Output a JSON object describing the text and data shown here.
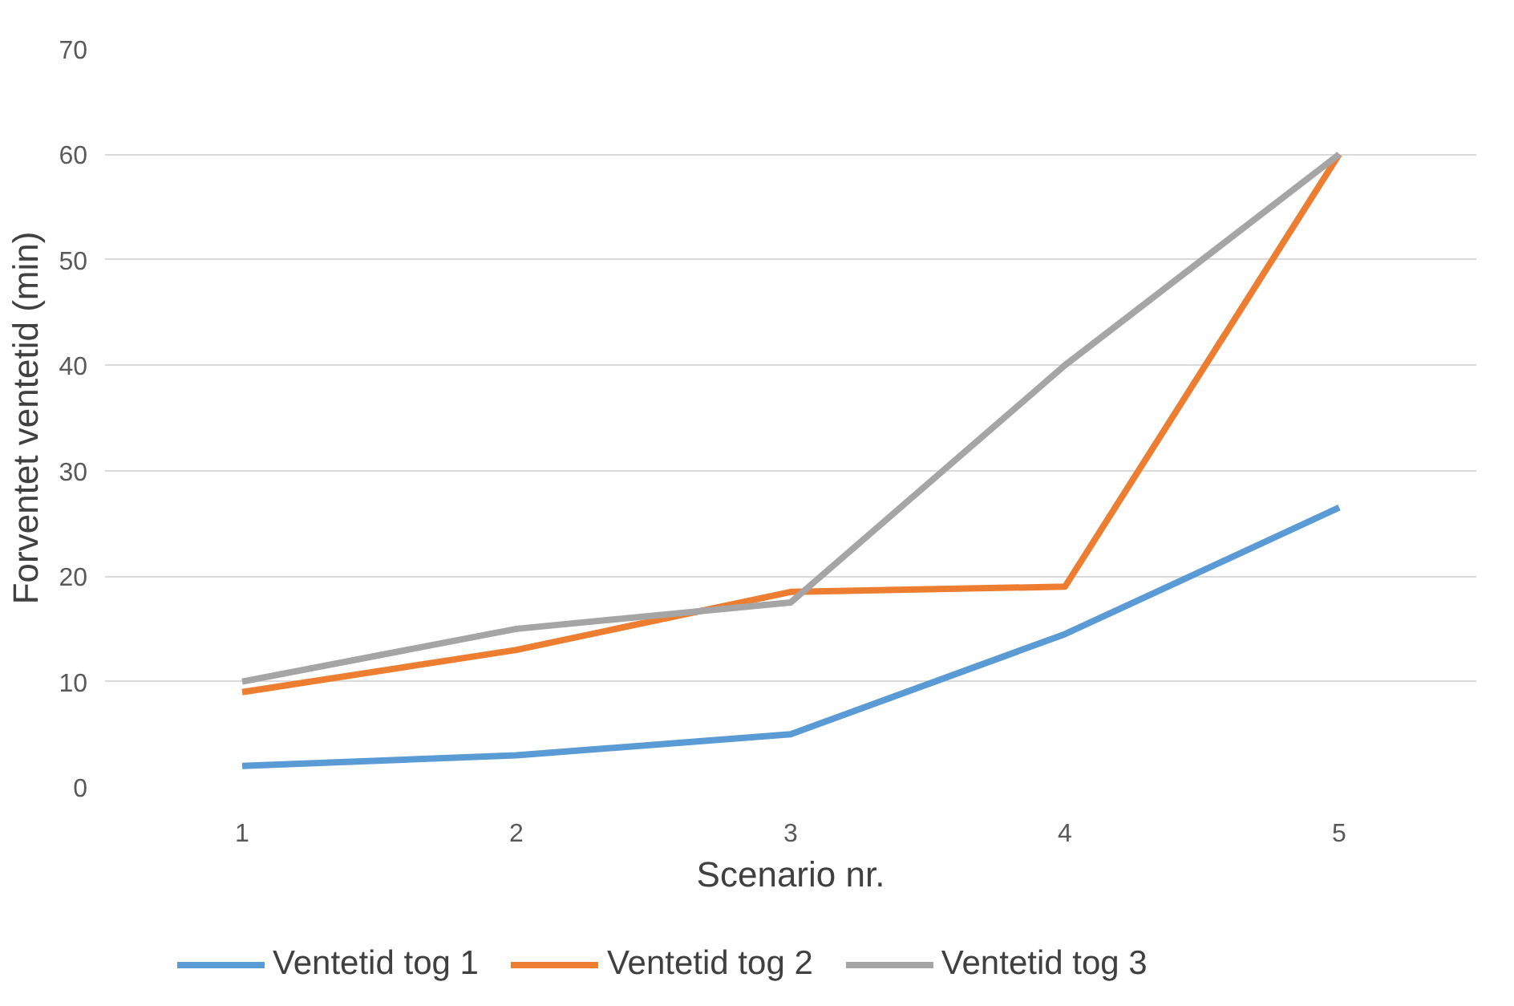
{
  "chart_data": {
    "type": "line",
    "xlabel": "Scenario nr.",
    "ylabel": "Forventet ventetid (min)",
    "categories": [
      "1",
      "2",
      "3",
      "4",
      "5"
    ],
    "series": [
      {
        "name": "Ventetid tog 1",
        "color": "#5b9bd5",
        "values": [
          2,
          3,
          5,
          14.5,
          26.5
        ]
      },
      {
        "name": "Ventetid tog 2",
        "color": "#ed7d31",
        "values": [
          9,
          13,
          18.5,
          19,
          60
        ]
      },
      {
        "name": "Ventetid tog 3",
        "color": "#a5a5a5",
        "values": [
          10,
          15,
          17.5,
          40,
          60
        ]
      }
    ],
    "ylim": [
      0,
      70
    ],
    "yticks": [
      0,
      10,
      20,
      30,
      40,
      50,
      60,
      70
    ],
    "grid": "y",
    "legend": "bottom",
    "marker": "none",
    "line_style": "solid"
  }
}
